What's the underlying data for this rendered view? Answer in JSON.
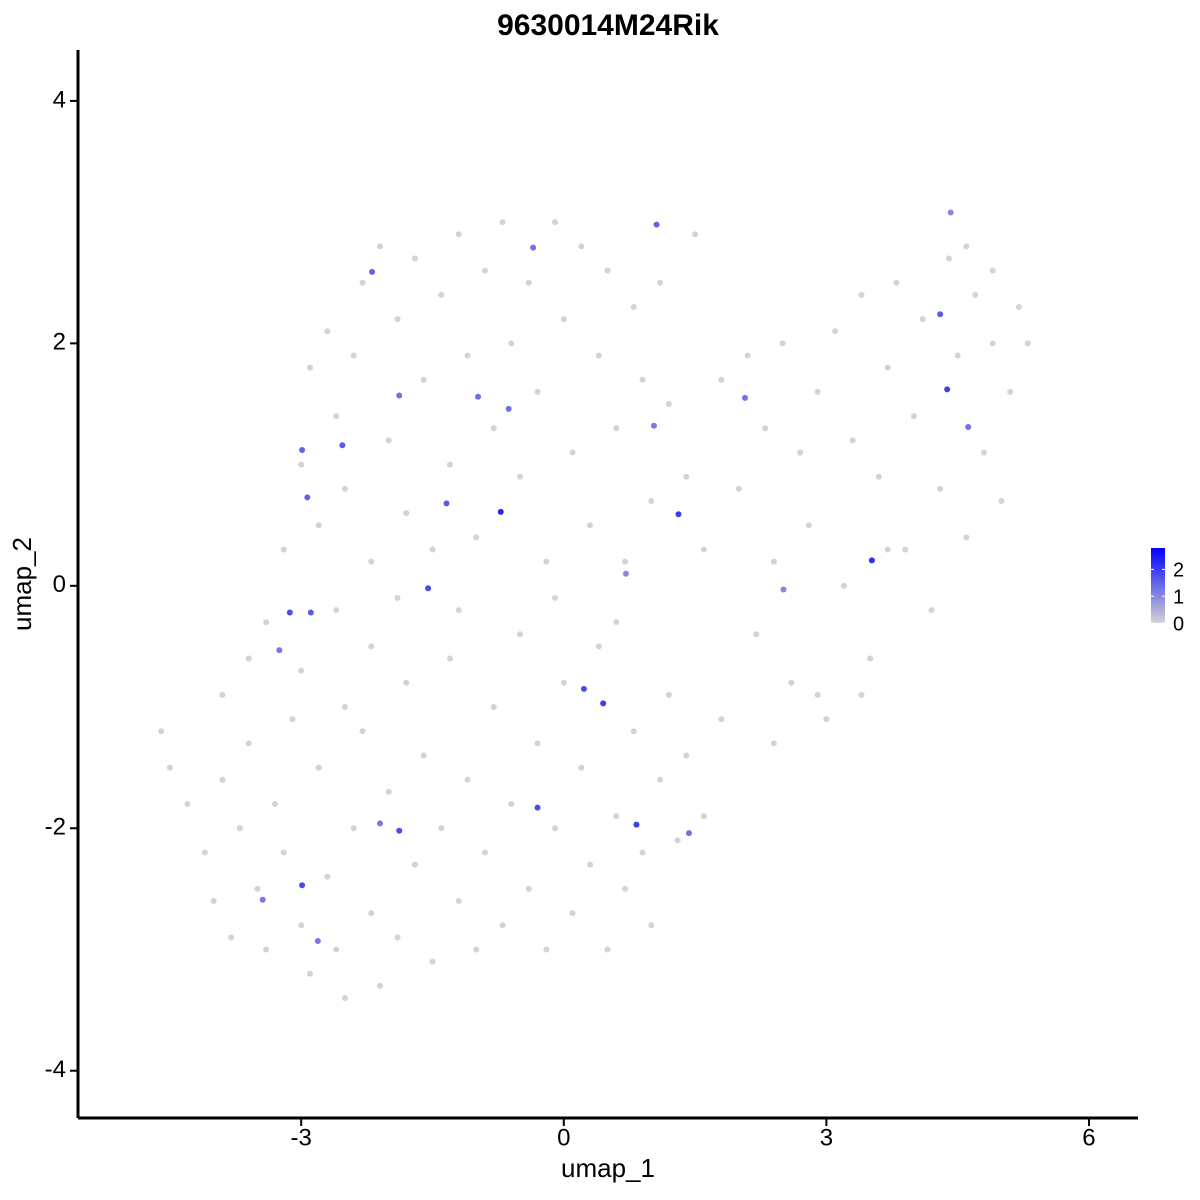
{
  "chart_data": {
    "type": "scatter",
    "title": "9630014M24Rik",
    "xlabel": "umap_1",
    "ylabel": "umap_2",
    "xlim": [
      -5.55,
      6.56
    ],
    "ylim": [
      -4.39,
      4.42
    ],
    "xticks": [
      -3,
      0,
      3,
      6
    ],
    "yticks": [
      -4,
      -2,
      0,
      2,
      4
    ],
    "grid": false,
    "color_scale": {
      "colors": [
        "#d3d3d3",
        "#0000ff"
      ],
      "lim": [
        0,
        2.8
      ],
      "ticks": [
        0,
        1,
        2
      ]
    },
    "x": [
      -4.6,
      -4.5,
      -4.3,
      -4.1,
      -4.0,
      -3.9,
      -3.8,
      -3.7,
      -3.6,
      -3.5,
      -3.4,
      -3.3,
      -3.2,
      -3.1,
      -3.0,
      -2.9,
      -2.8,
      -2.7,
      -2.6,
      -2.5,
      -2.4,
      -2.3,
      -2.2,
      -2.1,
      -2.0,
      -1.9,
      -1.8,
      -1.7,
      -1.6,
      -1.5,
      -1.4,
      -1.3,
      -1.2,
      -1.1,
      -1.0,
      -0.9,
      -0.8,
      -0.7,
      -0.6,
      -0.5,
      -0.4,
      -0.3,
      -0.2,
      -0.1,
      0.0,
      0.1,
      0.2,
      0.3,
      0.4,
      0.5,
      0.6,
      0.7,
      0.8,
      0.9,
      1.0,
      1.1,
      1.2,
      1.3,
      1.4,
      1.6,
      1.8,
      -3.9,
      -3.4,
      -3.0,
      -2.6,
      -2.2,
      -1.9,
      -2.5,
      -3.6,
      -3.2,
      -3.0,
      -2.9,
      -2.8,
      -2.7,
      -2.6,
      -2.5,
      -2.4,
      -2.3,
      -2.2,
      -2.1,
      -2.0,
      -1.9,
      -1.8,
      -1.7,
      -1.6,
      -1.5,
      -1.4,
      -1.3,
      -1.2,
      -1.1,
      -1.0,
      -0.9,
      -0.8,
      -0.7,
      -0.6,
      -0.5,
      -0.4,
      -0.3,
      -0.2,
      -0.1,
      0.0,
      0.1,
      0.2,
      0.3,
      0.4,
      0.5,
      0.6,
      0.7,
      0.8,
      0.9,
      1.0,
      1.1,
      1.2,
      1.5,
      1.4,
      -0.1,
      0.6,
      -1.2,
      1.6,
      1.8,
      2.0,
      2.1,
      2.2,
      2.3,
      2.4,
      2.5,
      2.6,
      2.7,
      2.8,
      2.9,
      3.0,
      3.1,
      3.2,
      3.3,
      3.4,
      3.5,
      3.6,
      3.7,
      3.8,
      3.9,
      4.0,
      4.1,
      4.2,
      4.3,
      4.4,
      4.5,
      4.6,
      4.7,
      4.8,
      4.9,
      5.0,
      5.1,
      5.2,
      5.3,
      3.4,
      2.9,
      2.4,
      3.7,
      4.6,
      4.9,
      -0.72,
      3.52,
      1.31,
      0.45,
      0.23,
      0.83,
      -0.3,
      -1.88,
      -2.99,
      -3.13,
      -2.89,
      4.38,
      4.3,
      -1.55,
      -1.34,
      -2.53,
      -2.99,
      -2.93,
      -2.19,
      -0.35,
      1.06,
      2.07,
      -0.63,
      -0.98,
      -1.88,
      4.62,
      1.43,
      -2.1,
      -2.81,
      -3.44,
      -3.25,
      2.51,
      0.71,
      1.03,
      4.42
    ],
    "y": [
      -1.2,
      -1.5,
      -1.8,
      -2.2,
      -2.6,
      -1.6,
      -2.9,
      -2.0,
      -1.3,
      -2.5,
      -3.0,
      -1.8,
      -2.2,
      -1.1,
      -2.8,
      -3.2,
      -1.5,
      -2.4,
      -3.0,
      -3.4,
      -2.0,
      -1.2,
      -2.7,
      -3.3,
      -1.7,
      -2.9,
      -0.8,
      -2.3,
      -1.4,
      -3.1,
      -2.0,
      -0.6,
      -2.6,
      -1.6,
      -3.0,
      -2.2,
      -1.0,
      -2.8,
      -1.8,
      -0.4,
      -2.5,
      -1.3,
      -3.0,
      -2.0,
      -0.8,
      -2.7,
      -1.5,
      -2.3,
      -0.5,
      -3.0,
      -1.9,
      -2.5,
      -1.2,
      -2.2,
      -2.8,
      -1.6,
      -0.9,
      -2.1,
      -1.4,
      -1.9,
      -1.1,
      -0.9,
      -0.3,
      -0.7,
      -0.2,
      -0.5,
      -0.1,
      -1.0,
      -0.6,
      0.3,
      1.0,
      1.8,
      0.5,
      2.1,
      1.4,
      0.8,
      1.9,
      2.5,
      0.2,
      2.8,
      1.2,
      2.2,
      0.6,
      2.7,
      1.7,
      0.3,
      2.4,
      1.0,
      2.9,
      1.9,
      0.4,
      2.6,
      1.3,
      3.0,
      2.0,
      0.9,
      2.5,
      1.6,
      0.2,
      3.0,
      2.2,
      1.1,
      2.8,
      0.5,
      1.9,
      2.6,
      1.3,
      0.2,
      2.3,
      1.7,
      0.7,
      2.5,
      1.5,
      2.9,
      0.9,
      -0.1,
      -0.3,
      -0.2,
      0.3,
      1.7,
      0.8,
      1.9,
      -0.4,
      1.3,
      0.2,
      2.0,
      -0.8,
      1.1,
      0.5,
      1.6,
      -1.1,
      2.1,
      0.0,
      1.2,
      2.4,
      -0.6,
      0.9,
      1.8,
      2.5,
      0.3,
      1.4,
      2.2,
      -0.2,
      0.8,
      2.7,
      1.9,
      0.4,
      2.4,
      1.1,
      2.0,
      0.7,
      1.6,
      2.3,
      2.0,
      -0.9,
      -0.9,
      -1.3,
      0.3,
      2.8,
      2.6,
      0.61,
      0.21,
      0.59,
      -0.97,
      -0.85,
      -1.97,
      -1.83,
      -2.02,
      -2.47,
      -0.22,
      -0.22,
      1.62,
      2.24,
      -0.02,
      0.68,
      1.16,
      1.12,
      0.73,
      2.59,
      2.79,
      2.98,
      1.55,
      1.46,
      1.56,
      1.57,
      1.31,
      -2.04,
      -1.96,
      -2.93,
      -2.59,
      -0.53,
      -0.03,
      0.1,
      1.32,
      3.08
    ],
    "expression": [
      0,
      0,
      0,
      0,
      0,
      0,
      0,
      0,
      0,
      0,
      0,
      0,
      0,
      0,
      0,
      0,
      0,
      0,
      0,
      0,
      0,
      0,
      0,
      0,
      0,
      0,
      0,
      0,
      0,
      0,
      0,
      0,
      0,
      0,
      0,
      0,
      0,
      0,
      0,
      0,
      0,
      0,
      0,
      0,
      0,
      0,
      0,
      0,
      0,
      0,
      0,
      0,
      0,
      0,
      0,
      0,
      0,
      0,
      0,
      0,
      0,
      0,
      0,
      0,
      0,
      0,
      0,
      0,
      0,
      0,
      0,
      0,
      0,
      0,
      0,
      0,
      0,
      0,
      0,
      0,
      0,
      0,
      0,
      0,
      0,
      0,
      0,
      0,
      0,
      0,
      0,
      0,
      0,
      0,
      0,
      0,
      0,
      0,
      0,
      0,
      0,
      0,
      0,
      0,
      0,
      0,
      0,
      0,
      0,
      0,
      0,
      0,
      0,
      0,
      0,
      0,
      0,
      0,
      0,
      0,
      0,
      0,
      0,
      0,
      0,
      0,
      0,
      0,
      0,
      0,
      0,
      0,
      0,
      0,
      0,
      0,
      0,
      0,
      0,
      0,
      0,
      0,
      0,
      0,
      0,
      0,
      0,
      0,
      0,
      0,
      0,
      0,
      0,
      0,
      0,
      0,
      0,
      0,
      0,
      0,
      2.3,
      2.2,
      2,
      2,
      1.8,
      2,
      1.8,
      1.8,
      1.8,
      1.8,
      1.6,
      2,
      1.6,
      1.8,
      1.6,
      1.6,
      1.5,
      1.5,
      1.5,
      1.3,
      1.5,
      1.3,
      1.3,
      1.3,
      1.3,
      1.3,
      1.3,
      1.2,
      1.2,
      1.2,
      1.2,
      1,
      1,
      1.2,
      1
    ]
  }
}
